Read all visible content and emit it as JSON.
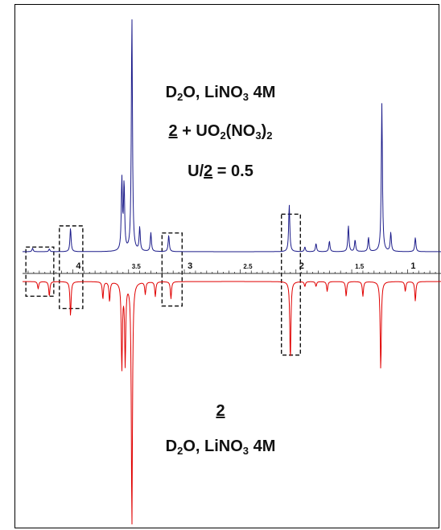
{
  "chart_data": {
    "type": "line",
    "x_axis": {
      "direction": "decreasing",
      "range": [
        4.45,
        0.7
      ],
      "major_ticks": [
        {
          "value": 4,
          "label": "4"
        },
        {
          "value": 3.5,
          "label": "3.5"
        },
        {
          "value": 3,
          "label": "3"
        },
        {
          "value": 2.5,
          "label": "2.5"
        },
        {
          "value": 2,
          "label": "2"
        },
        {
          "value": 1.5,
          "label": "1.5"
        },
        {
          "value": 1,
          "label": "1"
        }
      ]
    },
    "series": [
      {
        "color": "#1c1c8a",
        "orientation": "up",
        "peaks": [
          {
            "x": 4.36,
            "h": 0.015
          },
          {
            "x": 4.21,
            "h": 0.012
          },
          {
            "x": 4.02,
            "h": 0.1
          },
          {
            "x": 3.56,
            "h": 0.3
          },
          {
            "x": 3.54,
            "h": 0.28
          },
          {
            "x": 3.47,
            "h": 1.0
          },
          {
            "x": 3.4,
            "h": 0.1
          },
          {
            "x": 3.3,
            "h": 0.08
          },
          {
            "x": 3.14,
            "h": 0.07
          },
          {
            "x": 2.06,
            "h": 0.2
          },
          {
            "x": 1.92,
            "h": 0.02
          },
          {
            "x": 1.82,
            "h": 0.035
          },
          {
            "x": 1.7,
            "h": 0.045
          },
          {
            "x": 1.53,
            "h": 0.11
          },
          {
            "x": 1.47,
            "h": 0.05
          },
          {
            "x": 1.35,
            "h": 0.06
          },
          {
            "x": 1.23,
            "h": 0.63
          },
          {
            "x": 1.15,
            "h": 0.08
          },
          {
            "x": 0.93,
            "h": 0.06
          }
        ]
      },
      {
        "color": "#e00000",
        "orientation": "down",
        "peaks": [
          {
            "x": 4.31,
            "h": 0.03
          },
          {
            "x": 4.21,
            "h": 0.06
          },
          {
            "x": 4.02,
            "h": 0.14
          },
          {
            "x": 3.73,
            "h": 0.07
          },
          {
            "x": 3.67,
            "h": 0.08
          },
          {
            "x": 3.56,
            "h": 0.35
          },
          {
            "x": 3.53,
            "h": 0.33
          },
          {
            "x": 3.47,
            "h": 1.0
          },
          {
            "x": 3.35,
            "h": 0.05
          },
          {
            "x": 3.26,
            "h": 0.06
          },
          {
            "x": 3.12,
            "h": 0.07
          },
          {
            "x": 2.05,
            "h": 0.32
          },
          {
            "x": 1.92,
            "h": 0.02
          },
          {
            "x": 1.82,
            "h": 0.02
          },
          {
            "x": 1.72,
            "h": 0.04
          },
          {
            "x": 1.55,
            "h": 0.06
          },
          {
            "x": 1.4,
            "h": 0.06
          },
          {
            "x": 1.24,
            "h": 0.36
          },
          {
            "x": 1.02,
            "h": 0.04
          },
          {
            "x": 0.93,
            "h": 0.08
          }
        ]
      }
    ],
    "highlight_boxes": [
      {
        "x_range": [
          4.42,
          4.17
        ],
        "y_range": [
          0.02,
          -0.06
        ]
      },
      {
        "x_range": [
          4.12,
          3.91
        ],
        "y_range": [
          0.11,
          -0.11
        ]
      },
      {
        "x_range": [
          3.2,
          3.02
        ],
        "y_range": [
          0.08,
          -0.1
        ]
      },
      {
        "x_range": [
          2.13,
          1.96
        ],
        "y_range": [
          0.16,
          -0.3
        ]
      }
    ],
    "annotations": {
      "top": {
        "line1": {
          "a": "D",
          "a_sub": "2",
          "b": "O, LiNO",
          "b_sub": "3",
          "c": " 4M"
        },
        "line2": {
          "a": "2",
          "b": " + UO",
          "b_sub": "2",
          "c": "(NO",
          "c_sub": "3",
          "d": ")",
          "d_sub": "2"
        },
        "line3": {
          "a": "U/",
          "b": "2",
          "c": " = 0.5"
        }
      },
      "bottom": {
        "line1": {
          "a": "2"
        },
        "line2": {
          "a": "D",
          "a_sub": "2",
          "b": "O, LiNO",
          "b_sub": "3",
          "c": " 4M"
        }
      }
    }
  }
}
